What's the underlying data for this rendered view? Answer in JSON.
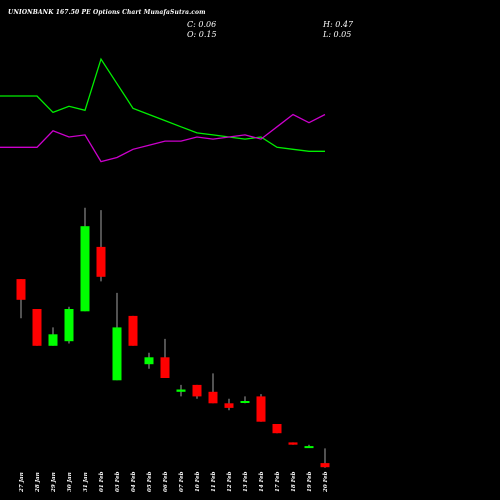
{
  "header": {
    "title": "UNIONBANK 167.50 PE Options Chart MunafaSutra.com",
    "close": "C: 0.06",
    "open": "O: 0.15",
    "high": "H: 0.47",
    "low": "L: 0.05"
  },
  "colors": {
    "background": "#000000",
    "bull": "#00ff00",
    "bear": "#ff0000",
    "line_green": "#00ee00",
    "line_purple": "#cc00cc",
    "wick": "#cccccc"
  },
  "chart_data": {
    "type": "candlestick",
    "title": "UNIONBANK 167.50 PE Options Chart MunafaSutra.com",
    "categories": [
      "27 Jan",
      "28 Jan",
      "29 Jan",
      "30 Jan",
      "31 Jan",
      "01 Feb",
      "03 Feb",
      "04 Feb",
      "05 Feb",
      "06 Feb",
      "07 Feb",
      "10 Feb",
      "11 Feb",
      "12 Feb",
      "13 Feb",
      "14 Feb",
      "17 Feb",
      "18 Feb",
      "19 Feb",
      "20 Feb"
    ],
    "price_ylim": [
      0,
      5
    ],
    "candles": [
      {
        "date": "27 Jan",
        "open": 4.15,
        "high": 4.15,
        "low": 3.3,
        "close": 3.7
      },
      {
        "date": "28 Jan",
        "open": 3.5,
        "high": 3.5,
        "low": 2.7,
        "close": 2.7
      },
      {
        "date": "29 Jan",
        "open": 2.7,
        "high": 3.1,
        "low": 2.7,
        "close": 2.95
      },
      {
        "date": "30 Jan",
        "open": 2.8,
        "high": 3.55,
        "low": 2.75,
        "close": 3.5
      },
      {
        "date": "31 Jan",
        "open": 3.45,
        "high": 5.7,
        "low": 3.45,
        "close": 5.3
      },
      {
        "date": "01 Feb",
        "open": 4.85,
        "high": 5.65,
        "low": 4.1,
        "close": 4.2
      },
      {
        "date": "03 Feb",
        "open": 1.95,
        "high": 3.85,
        "low": 1.95,
        "close": 3.1
      },
      {
        "date": "04 Feb",
        "open": 3.35,
        "high": 3.35,
        "low": 2.7,
        "close": 2.7
      },
      {
        "date": "05 Feb",
        "open": 2.3,
        "high": 2.55,
        "low": 2.2,
        "close": 2.45
      },
      {
        "date": "06 Feb",
        "open": 2.45,
        "high": 2.85,
        "low": 2.0,
        "close": 2.0
      },
      {
        "date": "07 Feb",
        "open": 1.7,
        "high": 1.85,
        "low": 1.6,
        "close": 1.75
      },
      {
        "date": "10 Feb",
        "open": 1.85,
        "high": 1.85,
        "low": 1.55,
        "close": 1.6
      },
      {
        "date": "11 Feb",
        "open": 1.7,
        "high": 2.1,
        "low": 1.45,
        "close": 1.45
      },
      {
        "date": "12 Feb",
        "open": 1.45,
        "high": 1.55,
        "low": 1.3,
        "close": 1.35
      },
      {
        "date": "13 Feb",
        "open": 1.5,
        "high": 1.6,
        "low": 1.45,
        "close": 1.5
      },
      {
        "date": "14 Feb",
        "open": 1.6,
        "high": 1.65,
        "low": 1.05,
        "close": 1.05
      },
      {
        "date": "17 Feb",
        "open": 1.0,
        "high": 1.0,
        "low": 0.8,
        "close": 0.8
      },
      {
        "date": "18 Feb",
        "open": 0.6,
        "high": 0.6,
        "low": 0.55,
        "close": 0.55
      },
      {
        "date": "19 Feb",
        "open": 0.5,
        "high": 0.55,
        "low": 0.48,
        "close": 0.52
      },
      {
        "date": "20 Feb",
        "open": 0.15,
        "high": 0.47,
        "low": 0.05,
        "close": 0.06
      }
    ],
    "line_ylim": [
      0,
      100
    ],
    "series": [
      {
        "values": [
          80,
          80,
          72,
          75,
          73,
          98,
          86,
          74,
          71,
          68,
          65,
          62,
          61,
          60,
          59,
          60,
          55,
          54,
          53,
          53
        ]
      },
      {
        "values": [
          55,
          55,
          63,
          60,
          61,
          48,
          50,
          54,
          56,
          58,
          58,
          60,
          59,
          60,
          61,
          59,
          65,
          71,
          67,
          71
        ]
      }
    ],
    "grid": false,
    "legend": "none"
  }
}
